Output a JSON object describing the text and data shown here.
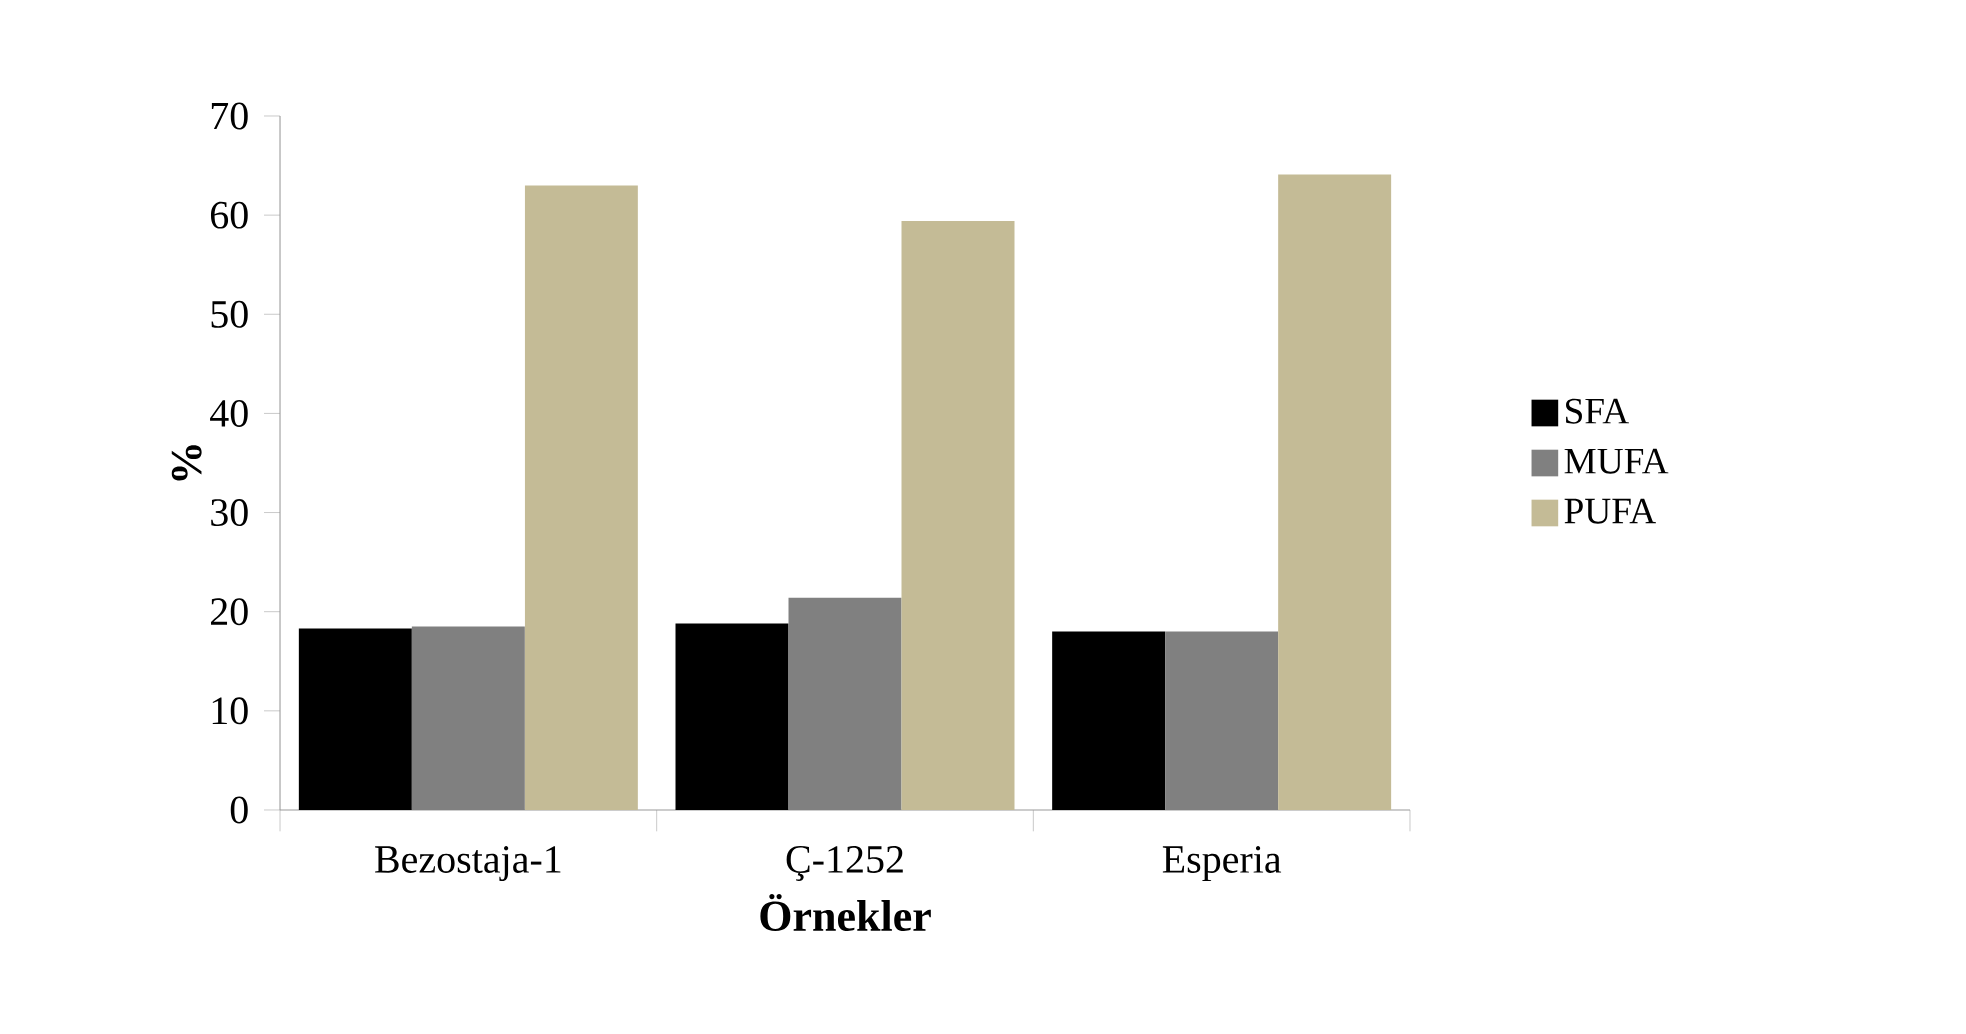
{
  "chart_data": {
    "type": "bar",
    "xlabel": "Örnekler",
    "ylabel": "%",
    "categories": [
      "Bezostaja-1",
      "Ç-1252",
      "Esperia"
    ],
    "series": [
      {
        "name": "SFA",
        "color": "#000000",
        "values": [
          18.3,
          18.8,
          18.0
        ]
      },
      {
        "name": "MUFA",
        "color": "#808080",
        "values": [
          18.5,
          21.4,
          18.0
        ]
      },
      {
        "name": "PUFA",
        "color": "#c4bb96",
        "values": [
          63.0,
          59.4,
          64.1
        ]
      }
    ],
    "ylim": [
      0,
      70
    ],
    "yticks": [
      0,
      10,
      20,
      30,
      40,
      50,
      60,
      70
    ],
    "grid": false,
    "legend": "right"
  }
}
